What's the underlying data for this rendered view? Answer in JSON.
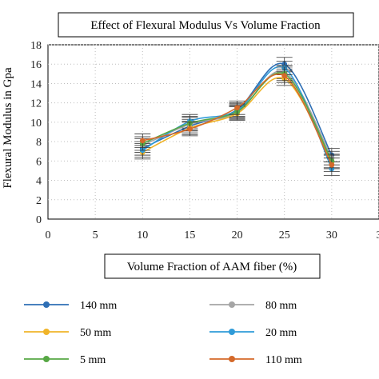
{
  "chart_data": {
    "type": "line",
    "title": "Effect of Flexural Modulus Vs Volume Fraction",
    "xlabel": "Volume Fraction of AAM fiber (%)",
    "ylabel": "Flexural Modulus in Gpa",
    "xlim": [
      0,
      35
    ],
    "ylim": [
      0,
      18
    ],
    "x_ticks": [
      "0",
      "5",
      "10",
      "15",
      "20",
      "25",
      "30",
      "3"
    ],
    "y_ticks": [
      "0",
      "2",
      "4",
      "6",
      "8",
      "10",
      "12",
      "14",
      "16",
      "18"
    ],
    "x": [
      10,
      15,
      20,
      25,
      30
    ],
    "grid": "dotted",
    "legend_position": "bottom",
    "error_bars": true,
    "series": [
      {
        "name": "140 mm",
        "color": "#2e6fb5",
        "values": [
          7.3,
          9.6,
          11.3,
          16.0,
          6.6
        ]
      },
      {
        "name": "80 mm",
        "color": "#a5a5a5",
        "values": [
          7.6,
          9.8,
          11.0,
          15.2,
          6.3
        ]
      },
      {
        "name": "50 mm",
        "color": "#f0b429",
        "values": [
          6.9,
          9.4,
          10.9,
          14.5,
          5.9
        ]
      },
      {
        "name": "20 mm",
        "color": "#2f9bd8",
        "values": [
          7.1,
          10.1,
          11.2,
          15.6,
          5.2
        ]
      },
      {
        "name": "5 mm",
        "color": "#57a845",
        "values": [
          7.8,
          9.9,
          11.1,
          15.0,
          6.0
        ]
      },
      {
        "name": "110 mm",
        "color": "#d4692a",
        "values": [
          8.1,
          9.3,
          11.5,
          14.8,
          5.6
        ]
      }
    ]
  }
}
